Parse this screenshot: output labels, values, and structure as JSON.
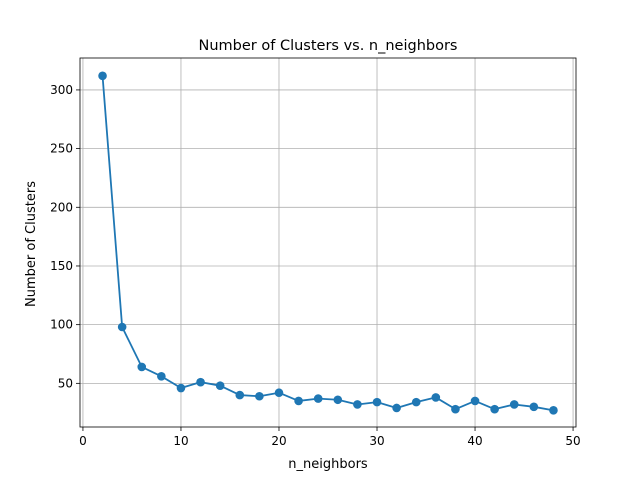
{
  "chart_data": {
    "type": "line",
    "title": "Number of Clusters vs. n_neighbors",
    "xlabel": "n_neighbors",
    "ylabel": "Number of Clusters",
    "xlim": [
      -0.3,
      50.3
    ],
    "ylim": [
      12.8,
      327.2
    ],
    "xticks": [
      0,
      10,
      20,
      30,
      40,
      50
    ],
    "yticks": [
      50,
      100,
      150,
      200,
      250,
      300
    ],
    "grid": true,
    "series": [
      {
        "color": "#1f77b4",
        "marker": "circle",
        "x": [
          2,
          4,
          6,
          8,
          10,
          12,
          14,
          16,
          18,
          20,
          22,
          24,
          26,
          28,
          30,
          32,
          34,
          36,
          38,
          40,
          42,
          44,
          46,
          48
        ],
        "y": [
          312,
          98,
          64,
          56,
          46,
          51,
          48,
          40,
          39,
          42,
          35,
          37,
          36,
          32,
          34,
          29,
          34,
          38,
          28,
          35,
          28,
          32,
          30,
          27
        ]
      }
    ]
  }
}
